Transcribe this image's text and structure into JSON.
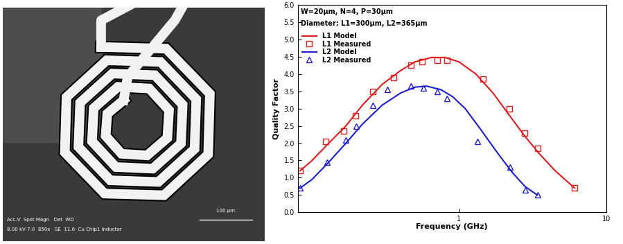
{
  "photo": {
    "info_lines": [
      "Acc.V  Spot Magn   Det  WD",
      "8.00 kV 7.0  850x   SE  11.6  Cu Chip1 Inductor"
    ],
    "scale_bar": "100 µm"
  },
  "chart_data": {
    "type": "line",
    "xlabel": "Frequency (GHz)",
    "ylabel": "Quality Factor",
    "annotations": [
      "W=20μm, N=4, P=30μm",
      "Diameter: L1=300μm, L2=365μm"
    ],
    "log": "x",
    "legend": "upper left",
    "xlim": [
      0.08,
      10
    ],
    "xticks": [
      1,
      10
    ],
    "ylim": [
      0,
      6
    ],
    "yticks": [
      {
        "value": 0,
        "label": "0.0"
      },
      0.5,
      {
        "value": 1,
        "label": "1.0"
      },
      1.5,
      {
        "value": 2,
        "label": "2.0"
      },
      2.5,
      {
        "value": 3,
        "label": "3.0"
      },
      3.5,
      {
        "value": 4,
        "label": "4.0"
      },
      4.5,
      {
        "value": 5,
        "label": "5.0"
      },
      5.5,
      {
        "value": 6,
        "label": "6.0"
      }
    ],
    "series": [
      {
        "name": "L1 Model",
        "type": "line",
        "color": "#e31a1c",
        "line_style": "solid",
        "x": [
          0.083,
          0.1,
          0.13,
          0.17,
          0.22,
          0.3,
          0.4,
          0.5,
          0.65,
          0.8,
          1.0,
          1.3,
          1.7,
          2.2,
          2.8,
          3.5,
          4.5,
          6.1
        ],
        "values": [
          1.2,
          1.5,
          2.0,
          2.5,
          3.1,
          3.7,
          4.1,
          4.35,
          4.48,
          4.48,
          4.35,
          4.0,
          3.45,
          2.8,
          2.2,
          1.7,
          1.2,
          0.7
        ]
      },
      {
        "name": "L1 Measured",
        "type": "scatter",
        "color": "#e31a1c",
        "marker": "square",
        "x": [
          0.083,
          0.124,
          0.165,
          0.197,
          0.26,
          0.36,
          0.47,
          0.56,
          0.71,
          0.83,
          1.46,
          2.19,
          2.78,
          3.42,
          6.11
        ],
        "values": [
          1.2,
          2.05,
          2.35,
          2.8,
          3.5,
          3.9,
          4.25,
          4.35,
          4.4,
          4.4,
          3.85,
          3.0,
          2.3,
          1.85,
          0.7
        ]
      },
      {
        "name": "L2 Model",
        "type": "line",
        "color": "#1c1cd0",
        "line_style": "solid",
        "x": [
          0.083,
          0.1,
          0.13,
          0.17,
          0.22,
          0.3,
          0.4,
          0.5,
          0.6,
          0.75,
          0.9,
          1.1,
          1.4,
          1.8,
          2.3,
          2.8,
          3.4
        ],
        "values": [
          0.7,
          0.95,
          1.45,
          2.0,
          2.55,
          3.1,
          3.45,
          3.62,
          3.65,
          3.55,
          3.35,
          3.0,
          2.4,
          1.75,
          1.15,
          0.75,
          0.5
        ]
      },
      {
        "name": "L2 Measured",
        "type": "scatter",
        "color": "#1c1cd0",
        "marker": "triangle",
        "x": [
          0.083,
          0.127,
          0.169,
          0.199,
          0.26,
          0.325,
          0.47,
          0.574,
          0.71,
          0.83,
          1.34,
          2.23,
          2.83,
          3.42
        ],
        "values": [
          0.7,
          1.45,
          2.1,
          2.5,
          3.1,
          3.55,
          3.65,
          3.6,
          3.5,
          3.3,
          2.05,
          1.3,
          0.65,
          0.5
        ]
      }
    ]
  }
}
